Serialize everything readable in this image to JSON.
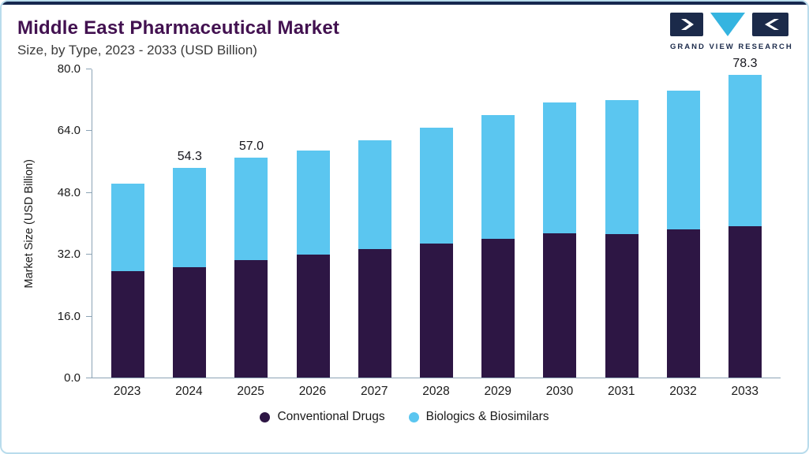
{
  "header": {
    "title": "Middle East Pharmaceutical Market",
    "subtitle": "Size, by Type, 2023 - 2033 (USD Billion)",
    "brand": "GRAND VIEW RESEARCH"
  },
  "colors": {
    "conventional": "#2D1644",
    "biologics": "#5BC6F0",
    "accent_navy": "#16284f",
    "border_blue": "#b9dcec",
    "title_purple": "#421150"
  },
  "chart_data": {
    "type": "bar",
    "stacked": true,
    "title": "Middle East Pharmaceutical Market",
    "subtitle": "Size, by Type, 2023 - 2033 (USD Billion)",
    "categories": [
      "2023",
      "2024",
      "2025",
      "2026",
      "2027",
      "2028",
      "2029",
      "2030",
      "2031",
      "2032",
      "2033"
    ],
    "series": [
      {
        "name": "Conventional Drugs",
        "color": "#2D1644",
        "values": [
          27.5,
          28.5,
          30.4,
          31.8,
          33.2,
          34.6,
          36.0,
          37.4,
          37.2,
          38.4,
          39.2
        ]
      },
      {
        "name": "Biologics & Biosimilars",
        "color": "#5BC6F0",
        "values": [
          22.7,
          25.8,
          26.6,
          26.9,
          28.3,
          30.2,
          32.0,
          33.8,
          34.6,
          35.9,
          39.1
        ]
      }
    ],
    "totals_labels": {
      "2024": "54.3",
      "2025": "57.0",
      "2033": "78.3"
    },
    "ylabel": "Market Size (USD Billion)",
    "xlabel": "",
    "ylim": [
      0,
      80
    ],
    "yticks": [
      0.0,
      16.0,
      32.0,
      48.0,
      64.0,
      80.0
    ],
    "grid": false,
    "legend_position": "bottom"
  }
}
